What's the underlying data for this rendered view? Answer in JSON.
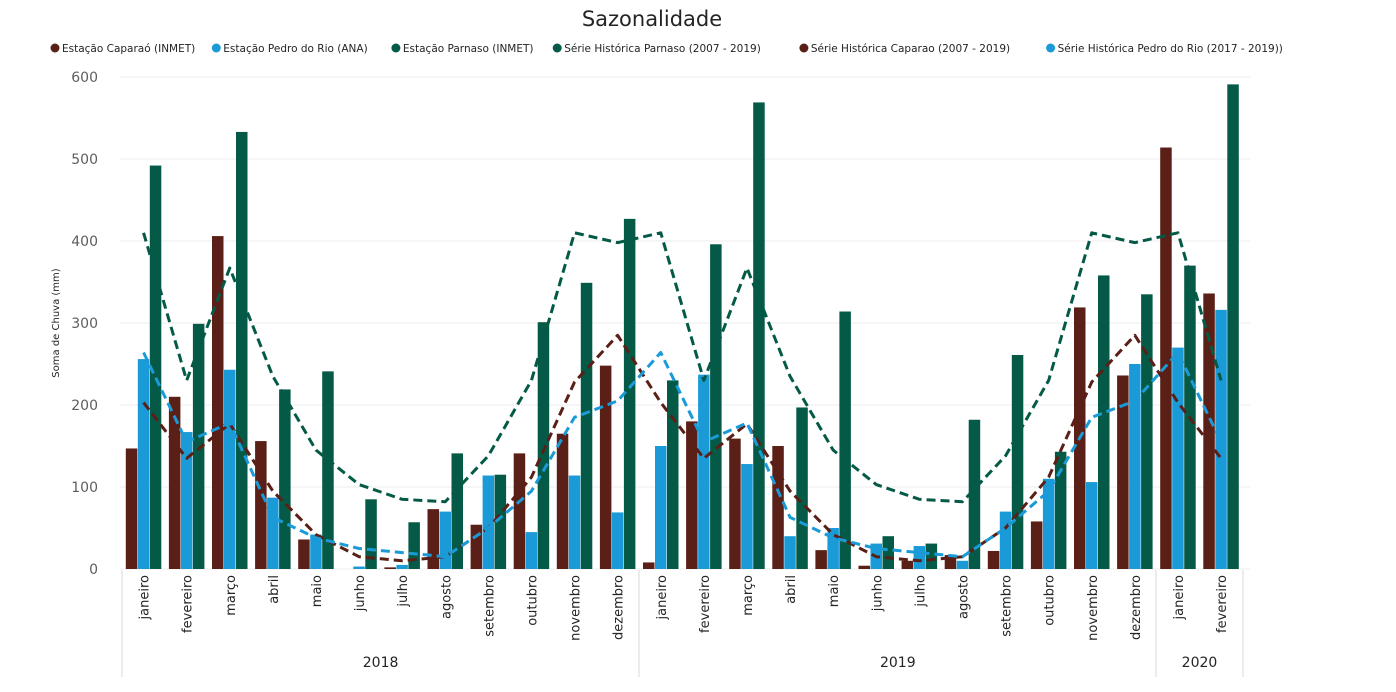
{
  "chart_data": {
    "type": "bar",
    "title": "Sazonalidade",
    "ylabel": "Soma de Chuva (mm)",
    "xlabel": "",
    "ylim": [
      0,
      600
    ],
    "yticks": [
      0,
      100,
      200,
      300,
      400,
      500,
      600
    ],
    "grid": true,
    "legend_position": "top-left",
    "categories": [
      "janeiro",
      "fevereiro",
      "março",
      "abril",
      "maio",
      "junho",
      "julho",
      "agosto",
      "setembro",
      "outubro",
      "novembro",
      "dezembro",
      "janeiro",
      "fevereiro",
      "março",
      "abril",
      "maio",
      "junho",
      "julho",
      "agosto",
      "setembro",
      "outubro",
      "novembro",
      "dezembro",
      "janeiro",
      "fevereiro"
    ],
    "year_groups": [
      {
        "label": "2018",
        "start": 0,
        "end": 11
      },
      {
        "label": "2019",
        "start": 12,
        "end": 23
      },
      {
        "label": "2020",
        "start": 24,
        "end": 25
      }
    ],
    "series": [
      {
        "name": "Estação Caparaó (INMET)",
        "kind": "bar",
        "color": "#5a1f16",
        "values": [
          147,
          210,
          406,
          156,
          36,
          0,
          2,
          73,
          54,
          141,
          165,
          248,
          8,
          180,
          159,
          150,
          23,
          4,
          10,
          17,
          22,
          58,
          319,
          236,
          514,
          336
        ]
      },
      {
        "name": "Estação Pedro do Rio (ANA)",
        "kind": "bar",
        "color": "#1a9bd8",
        "values": [
          256,
          167,
          243,
          87,
          42,
          3,
          5,
          70,
          114,
          45,
          114,
          69,
          150,
          237,
          128,
          40,
          50,
          31,
          28,
          10,
          70,
          110,
          106,
          250,
          270,
          316
        ]
      },
      {
        "name": "Estação Parnaso (INMET)",
        "kind": "bar",
        "color": "#045a46",
        "values": [
          492,
          299,
          533,
          219,
          241,
          85,
          57,
          141,
          115,
          301,
          349,
          427,
          230,
          396,
          569,
          197,
          314,
          40,
          31,
          182,
          261,
          143,
          358,
          335,
          370,
          591
        ]
      },
      {
        "name": "Série Histórica Parnaso (2007 - 2019)",
        "kind": "line",
        "color": "#045a46",
        "values": [
          410,
          230,
          367,
          235,
          145,
          103,
          85,
          82,
          138,
          230,
          410,
          398,
          410,
          230,
          367,
          235,
          145,
          103,
          85,
          82,
          138,
          230,
          410,
          398,
          410,
          230
        ]
      },
      {
        "name": "Série Histórica Caparao (2007 - 2019)",
        "kind": "line",
        "color": "#5a1f16",
        "values": [
          203,
          135,
          177,
          95,
          42,
          15,
          10,
          15,
          50,
          112,
          228,
          285,
          203,
          135,
          177,
          95,
          42,
          15,
          10,
          15,
          50,
          112,
          228,
          285,
          203,
          135
        ]
      },
      {
        "name": "Série Histórica Pedro do Rio (2017 - 2019))",
        "kind": "line",
        "color": "#1a9bd8",
        "values": [
          264,
          155,
          178,
          63,
          38,
          25,
          20,
          15,
          50,
          95,
          185,
          205,
          264,
          155,
          178,
          63,
          38,
          25,
          20,
          15,
          50,
          95,
          185,
          205,
          264,
          155
        ]
      }
    ]
  }
}
